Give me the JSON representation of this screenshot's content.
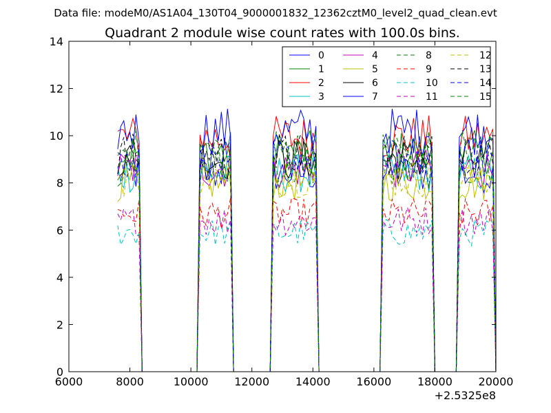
{
  "chart_data": {
    "type": "line",
    "suptitle": "Data file: modeM0/AS1A04_130T04_9000001832_12362cztM0_level2_quad_clean.evt",
    "title": "Quadrant 2 module wise count rates with 100.0s bins.",
    "xlabel": "",
    "ylabel": "",
    "x_offset_label": "+2.5325e8",
    "xlim": [
      6000,
      20000
    ],
    "ylim": [
      0,
      14
    ],
    "x_ticks": [
      6000,
      8000,
      10000,
      12000,
      14000,
      16000,
      18000,
      20000
    ],
    "y_ticks": [
      0,
      2,
      4,
      6,
      8,
      10,
      12,
      14
    ],
    "grid": false,
    "legend_position": "top-right",
    "legend_columns": 4,
    "segments": [
      {
        "start": 7600,
        "end": 8300
      },
      {
        "start": 10300,
        "end": 11300
      },
      {
        "start": 12700,
        "end": 14100
      },
      {
        "start": 16300,
        "end": 17900
      },
      {
        "start": 18800,
        "end": 19900
      }
    ],
    "series": [
      {
        "name": "0",
        "color": "#0000ff",
        "style": "solid",
        "level": 8.4
      },
      {
        "name": "1",
        "color": "#008000",
        "style": "solid",
        "level": 9.3
      },
      {
        "name": "2",
        "color": "#ff0000",
        "style": "solid",
        "level": 9.9
      },
      {
        "name": "3",
        "color": "#00bfbf",
        "style": "solid",
        "level": 8.4
      },
      {
        "name": "4",
        "color": "#bf00bf",
        "style": "solid",
        "level": 8.6
      },
      {
        "name": "5",
        "color": "#bfbf00",
        "style": "solid",
        "level": 8.0
      },
      {
        "name": "6",
        "color": "#000000",
        "style": "solid",
        "level": 9.0
      },
      {
        "name": "7",
        "color": "#0000ff",
        "style": "solid",
        "level": 10.2
      },
      {
        "name": "8",
        "color": "#008000",
        "style": "dashed",
        "level": 8.6
      },
      {
        "name": "9",
        "color": "#ff0000",
        "style": "dashed",
        "level": 6.7
      },
      {
        "name": "10",
        "color": "#00bfbf",
        "style": "dashed",
        "level": 5.9
      },
      {
        "name": "11",
        "color": "#bf00bf",
        "style": "dashed",
        "level": 6.4
      },
      {
        "name": "12",
        "color": "#bfbf00",
        "style": "dashed",
        "level": 8.2
      },
      {
        "name": "13",
        "color": "#000000",
        "style": "dashed",
        "level": 9.2
      },
      {
        "name": "14",
        "color": "#0000ff",
        "style": "dashed",
        "level": 9.0
      },
      {
        "name": "15",
        "color": "#008000",
        "style": "dashed",
        "level": 9.4
      }
    ]
  }
}
